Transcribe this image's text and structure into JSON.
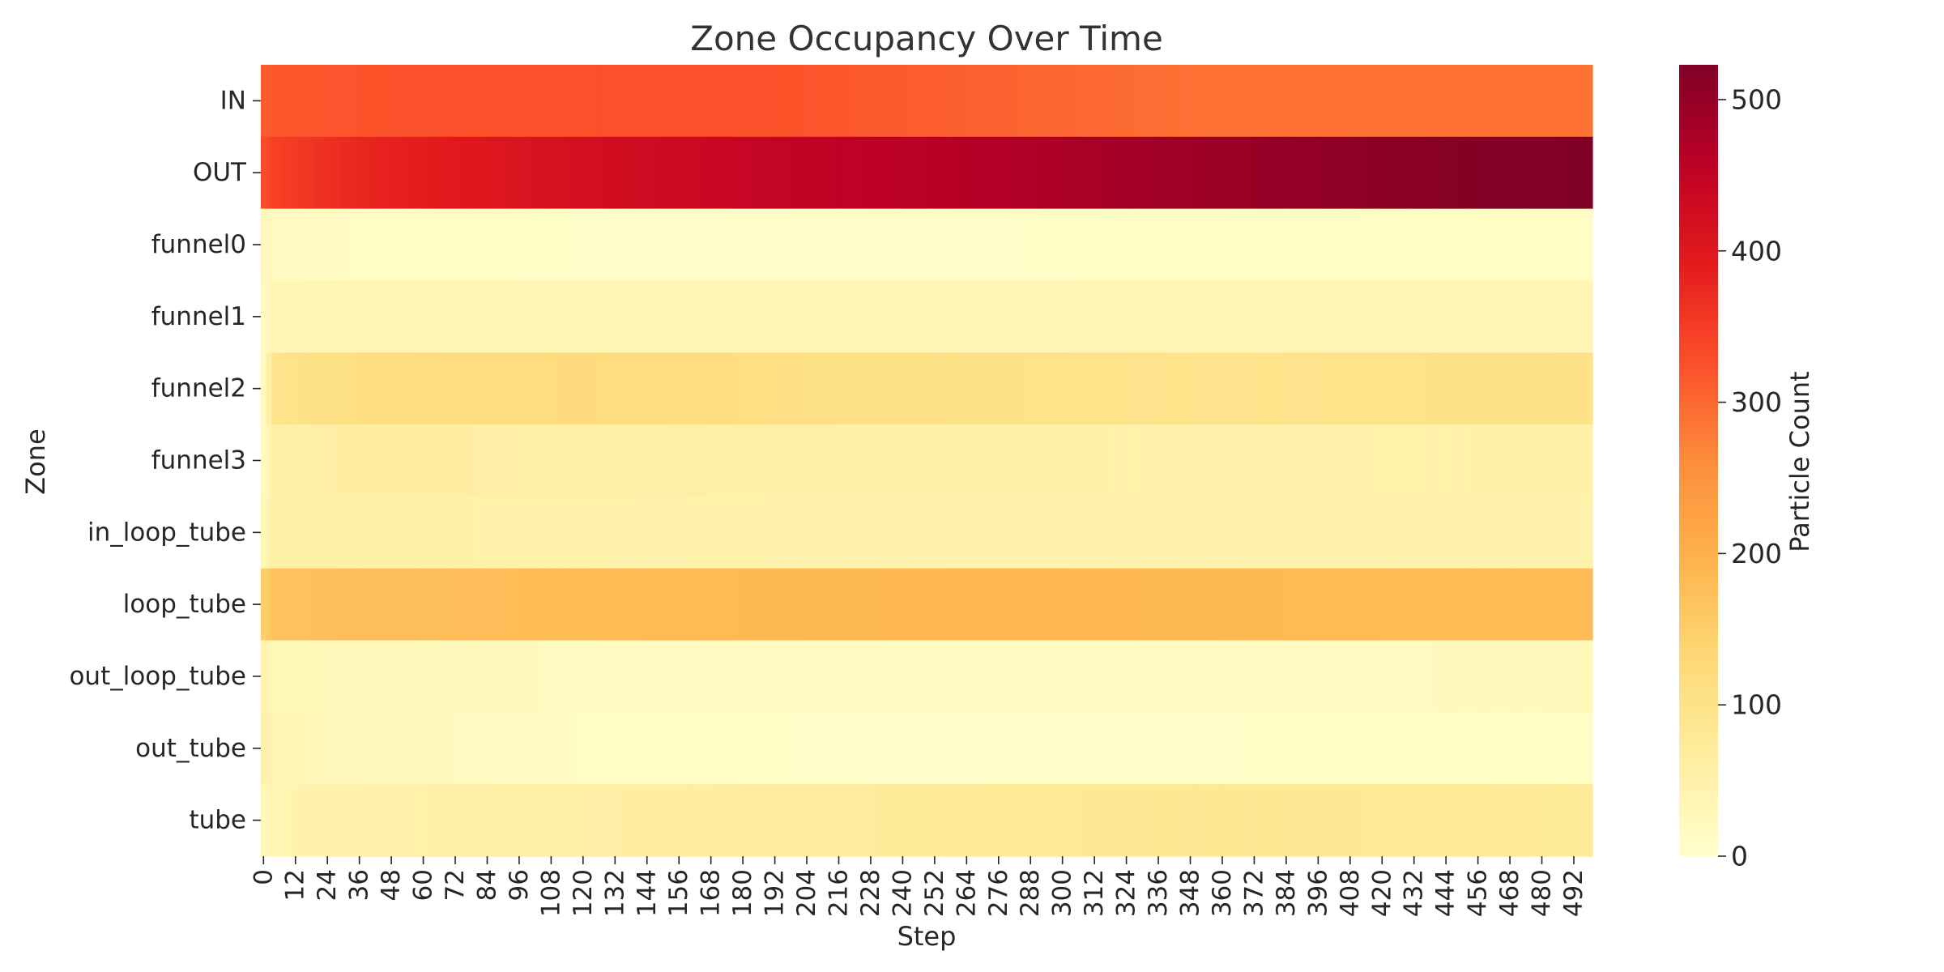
{
  "chart_data": {
    "type": "heatmap",
    "title": "Zone Occupancy Over Time",
    "xlabel": "Step",
    "ylabel": "Zone",
    "colorbar_label": "Particle Count",
    "colormap": "YlOrRd",
    "colormap_stops": [
      "#ffffcc",
      "#ffeda0",
      "#fed976",
      "#feb24c",
      "#fd8d3c",
      "#fc4e2a",
      "#e31a1c",
      "#bd0026",
      "#800026"
    ],
    "vmin": 0,
    "vmax": 523,
    "colorbar_ticks": [
      0,
      100,
      200,
      300,
      400,
      500
    ],
    "x_start": 0,
    "x_step": 2,
    "x_count": 250,
    "x_tick_labels": [
      "0",
      "12",
      "24",
      "36",
      "48",
      "60",
      "72",
      "84",
      "96",
      "108",
      "120",
      "132",
      "144",
      "156",
      "168",
      "180",
      "192",
      "204",
      "216",
      "228",
      "240",
      "252",
      "264",
      "276",
      "288",
      "300",
      "312",
      "324",
      "336",
      "348",
      "360",
      "372",
      "384",
      "396",
      "408",
      "420",
      "432",
      "444",
      "456",
      "468",
      "480",
      "492"
    ],
    "rows": [
      "IN",
      "OUT",
      "funnel0",
      "funnel1",
      "funnel2",
      "funnel3",
      "in_loop_tube",
      "loop_tube",
      "out_loop_tube",
      "out_tube",
      "tube"
    ],
    "row_profiles": [
      {
        "name": "IN",
        "steps": [
          0,
          4,
          40,
          120,
          200,
          280,
          360,
          440,
          498
        ],
        "values": [
          310,
          318,
          322,
          326,
          322,
          305,
          290,
          290,
          290
        ]
      },
      {
        "name": "OUT",
        "steps": [
          0,
          4,
          40,
          120,
          200,
          280,
          360,
          440,
          498
        ],
        "values": [
          330,
          345,
          380,
          420,
          450,
          470,
          495,
          515,
          522
        ]
      },
      {
        "name": "funnel0",
        "steps": [
          0,
          4,
          40,
          120,
          200,
          280,
          360,
          440,
          498
        ],
        "values": [
          25,
          15,
          12,
          8,
          8,
          8,
          10,
          12,
          12
        ]
      },
      {
        "name": "funnel1",
        "steps": [
          0,
          4,
          40,
          120,
          200,
          280,
          360,
          440,
          498
        ],
        "values": [
          20,
          35,
          40,
          35,
          32,
          35,
          40,
          38,
          36
        ]
      },
      {
        "name": "funnel2",
        "steps": [
          0,
          4,
          40,
          120,
          200,
          280,
          360,
          440,
          498
        ],
        "values": [
          20,
          95,
          115,
          120,
          110,
          100,
          95,
          100,
          100
        ]
      },
      {
        "name": "funnel3",
        "steps": [
          0,
          4,
          40,
          120,
          200,
          280,
          360,
          440,
          498
        ],
        "values": [
          20,
          55,
          65,
          58,
          55,
          55,
          50,
          52,
          55
        ]
      },
      {
        "name": "in_loop_tube",
        "steps": [
          0,
          4,
          40,
          120,
          200,
          280,
          360,
          440,
          498
        ],
        "values": [
          30,
          55,
          55,
          50,
          48,
          48,
          48,
          48,
          48
        ]
      },
      {
        "name": "loop_tube",
        "steps": [
          0,
          4,
          40,
          120,
          200,
          280,
          360,
          440,
          498
        ],
        "values": [
          150,
          170,
          175,
          180,
          185,
          190,
          185,
          180,
          180
        ]
      },
      {
        "name": "out_loop_tube",
        "steps": [
          0,
          4,
          40,
          120,
          200,
          280,
          360,
          440,
          498
        ],
        "values": [
          45,
          30,
          28,
          18,
          15,
          15,
          15,
          20,
          25
        ]
      },
      {
        "name": "out_tube",
        "steps": [
          0,
          4,
          40,
          120,
          200,
          280,
          360,
          440,
          498
        ],
        "values": [
          50,
          35,
          25,
          12,
          8,
          8,
          8,
          10,
          10
        ]
      },
      {
        "name": "tube",
        "steps": [
          0,
          4,
          40,
          120,
          200,
          280,
          360,
          440,
          498
        ],
        "values": [
          30,
          40,
          50,
          60,
          70,
          80,
          85,
          80,
          75
        ]
      }
    ]
  }
}
